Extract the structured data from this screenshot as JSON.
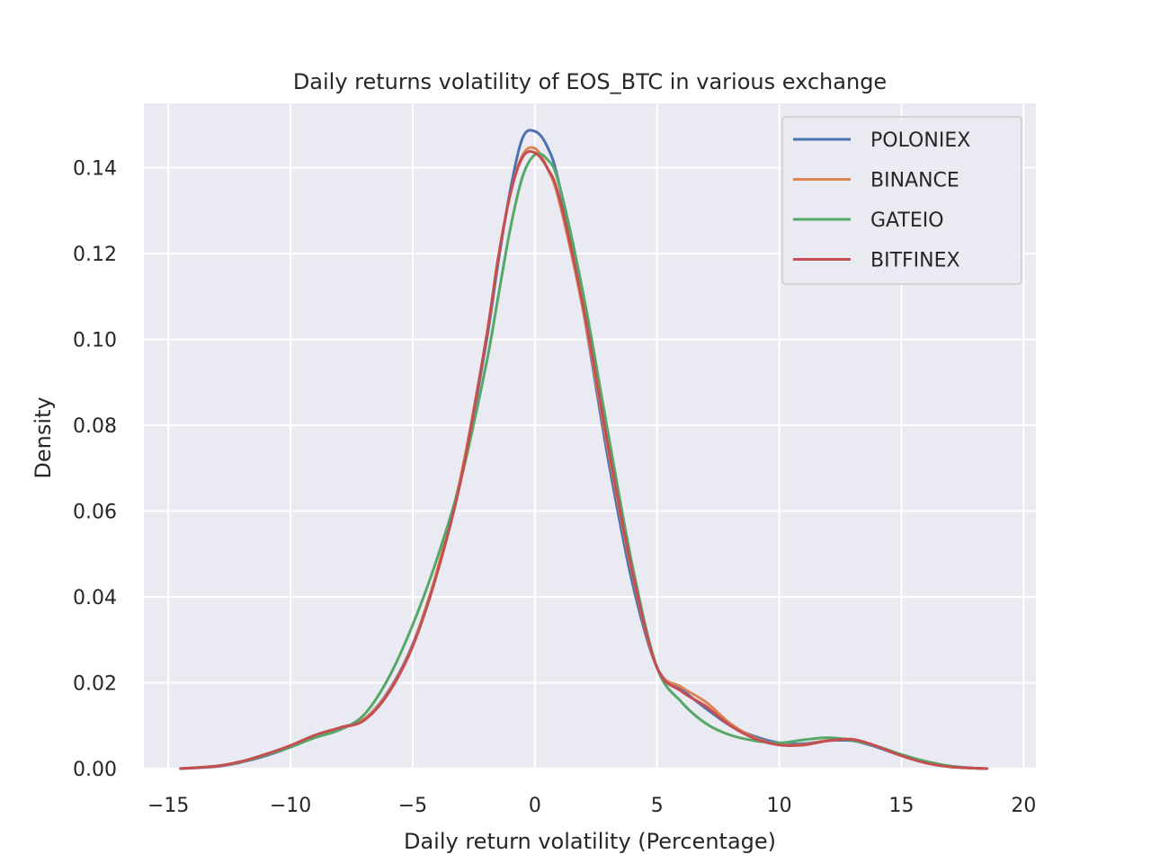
{
  "chart_data": {
    "type": "line",
    "title": "Daily returns volatility of EOS_BTC in various exchange",
    "xlabel": "Daily return volatility (Percentage)",
    "ylabel": "Density",
    "xlim": [
      -16,
      20.5
    ],
    "ylim": [
      0,
      0.155
    ],
    "x_ticks": [
      -15,
      -10,
      -5,
      0,
      5,
      10,
      15,
      20
    ],
    "x_tick_labels": [
      "−15",
      "−10",
      "−5",
      "0",
      "5",
      "10",
      "15",
      "20"
    ],
    "y_ticks": [
      0,
      0.02,
      0.04,
      0.06,
      0.08,
      0.1,
      0.12,
      0.14
    ],
    "y_tick_labels": [
      "0.00",
      "0.02",
      "0.04",
      "0.06",
      "0.08",
      "0.10",
      "0.12",
      "0.14"
    ],
    "grid": true,
    "legend_position": "top-right",
    "series": [
      {
        "name": "POLONIEX",
        "color": "#4c72b0",
        "x": [
          -14.5,
          -13,
          -12,
          -11,
          -10,
          -9,
          -8,
          -7,
          -6,
          -5,
          -4,
          -3,
          -2,
          -1.5,
          -1,
          -0.5,
          0,
          0.5,
          1,
          2,
          3,
          4,
          5,
          6,
          7,
          8,
          9,
          10,
          11,
          12,
          13,
          14,
          15,
          16,
          17,
          18,
          18.5
        ],
        "values": [
          0.0,
          0.0005,
          0.0015,
          0.003,
          0.005,
          0.0075,
          0.0095,
          0.0115,
          0.018,
          0.029,
          0.046,
          0.068,
          0.099,
          0.118,
          0.135,
          0.147,
          0.1485,
          0.145,
          0.136,
          0.106,
          0.072,
          0.043,
          0.0235,
          0.0185,
          0.014,
          0.01,
          0.0075,
          0.006,
          0.0058,
          0.0065,
          0.0065,
          0.005,
          0.003,
          0.0015,
          0.0005,
          0.0001,
          0.0
        ]
      },
      {
        "name": "BINANCE",
        "color": "#dd8452",
        "x": [
          -14.5,
          -13,
          -12,
          -11,
          -10,
          -9,
          -8,
          -7,
          -6,
          -5,
          -4,
          -3,
          -2,
          -1.5,
          -1,
          -0.5,
          0,
          0.5,
          1,
          2,
          3,
          4,
          5,
          6,
          7,
          8,
          9,
          10,
          11,
          12,
          13,
          14,
          15,
          16,
          17,
          18,
          18.5
        ],
        "values": [
          0.0,
          0.0006,
          0.0016,
          0.0032,
          0.0052,
          0.0076,
          0.0095,
          0.0115,
          0.0178,
          0.0288,
          0.0462,
          0.069,
          0.1,
          0.119,
          0.134,
          0.143,
          0.1445,
          0.14,
          0.132,
          0.106,
          0.074,
          0.045,
          0.0235,
          0.019,
          0.0155,
          0.0105,
          0.0072,
          0.0056,
          0.0056,
          0.0066,
          0.0068,
          0.0052,
          0.003,
          0.0014,
          0.0005,
          0.0001,
          0.0
        ]
      },
      {
        "name": "GATEIO",
        "color": "#55a868",
        "x": [
          -14.5,
          -13,
          -12,
          -11,
          -10,
          -9,
          -8,
          -7,
          -6,
          -5,
          -4,
          -3,
          -2,
          -1.5,
          -1,
          -0.5,
          0,
          0.5,
          1,
          2,
          3,
          4,
          5,
          6,
          7,
          8,
          9,
          10,
          11,
          12,
          13,
          14,
          15,
          16,
          17,
          18,
          18.5
        ],
        "values": [
          0.0,
          0.0006,
          0.0016,
          0.0032,
          0.005,
          0.0072,
          0.009,
          0.0125,
          0.021,
          0.0335,
          0.049,
          0.068,
          0.094,
          0.11,
          0.126,
          0.138,
          0.143,
          0.142,
          0.136,
          0.11,
          0.078,
          0.047,
          0.0235,
          0.0155,
          0.0105,
          0.0078,
          0.0065,
          0.006,
          0.0067,
          0.0072,
          0.0066,
          0.0052,
          0.0033,
          0.0017,
          0.0006,
          0.0001,
          0.0
        ]
      },
      {
        "name": "BITFINEX",
        "color": "#c44e52",
        "x": [
          -14.5,
          -13,
          -12,
          -11,
          -10,
          -9,
          -8,
          -7,
          -6,
          -5,
          -4,
          -3,
          -2,
          -1.5,
          -1,
          -0.5,
          0,
          0.5,
          1,
          2,
          3,
          4,
          5,
          6,
          7,
          8,
          9,
          10,
          11,
          12,
          13,
          14,
          15,
          16,
          17,
          18,
          18.5
        ],
        "values": [
          0.0,
          0.0006,
          0.0017,
          0.0034,
          0.0054,
          0.0078,
          0.0095,
          0.0112,
          0.0175,
          0.0285,
          0.0455,
          0.068,
          0.1,
          0.119,
          0.134,
          0.1425,
          0.1435,
          0.14,
          0.133,
          0.107,
          0.075,
          0.0455,
          0.0235,
          0.018,
          0.0145,
          0.01,
          0.007,
          0.0055,
          0.0055,
          0.0065,
          0.0068,
          0.0052,
          0.003,
          0.0013,
          0.0004,
          0.0001,
          0.0
        ]
      }
    ]
  }
}
